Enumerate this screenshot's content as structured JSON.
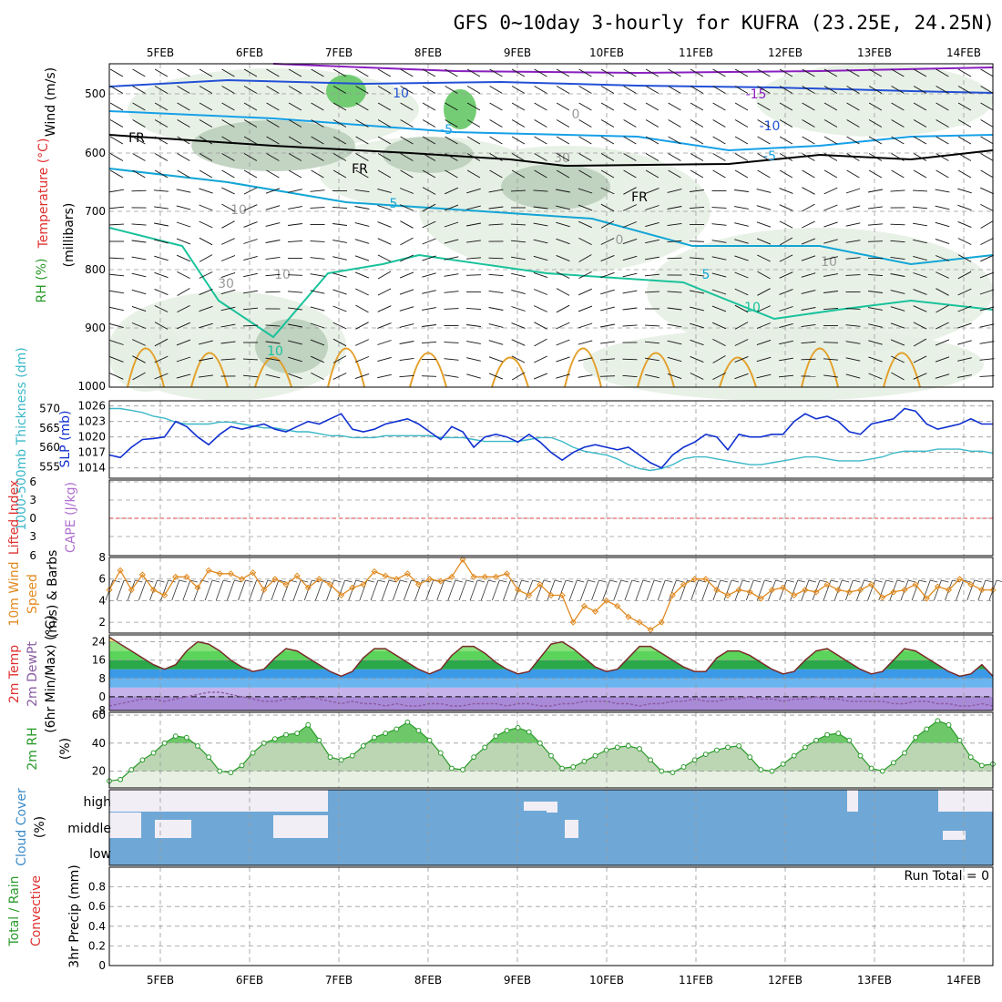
{
  "title": "GFS 0~10day 3-hourly for KUFRA (23.25E, 24.25N)",
  "dates": [
    "5FEB",
    "6FEB",
    "7FEB",
    "8FEB",
    "9FEB",
    "10FEB",
    "11FEB",
    "12FEB",
    "13FEB",
    "14FEB"
  ],
  "colors": {
    "temp_c10": "#19c29b",
    "temp_c5": "#12a5d6",
    "temp_cm5": "#16a0e8",
    "temp_cm10": "#2350d6",
    "temp_cm15": "#8a1fc0",
    "temp_warm": "#e3a029",
    "freezing": "#000000",
    "rh_light": "#e4efe2",
    "rh_mid": "#b9ccb8",
    "rh_dark": "#8faa8e",
    "rh_green": "#5cc45c",
    "slp_line": "#1030d0",
    "thickness_line": "#3cb8c8",
    "wind10m": "#e08a20",
    "dewpt": "#8a5ca0",
    "rh2m": "#2a9a2a",
    "cloud": "#6fa8d6"
  },
  "panels": {
    "upper": {
      "ylabel_wind": "Wind (m/s)",
      "ylabel_temp": "Temperature (°C)",
      "ylabel_rh": "RH (%)",
      "ylabel_units": "(millibars)",
      "yticks": [
        "500",
        "600",
        "700",
        "800",
        "900",
        "1000"
      ],
      "contour_labels": [
        "10",
        "-15",
        "-10",
        "-5",
        "-5",
        "5",
        "5",
        "10",
        "10",
        "FR",
        "FR",
        "FR",
        "10",
        "0",
        "30",
        "30",
        "10",
        "10",
        "0"
      ]
    },
    "slp": {
      "ylabel_thick": "1000-500mb Thickness (dm)",
      "ylabel_slp": "SLP (mb)",
      "left_ticks": [
        "570",
        "565",
        "560",
        "555"
      ],
      "right_ticks": [
        "1026",
        "1023",
        "1020",
        "1017",
        "1014"
      ]
    },
    "cape": {
      "ylabel_li": "Lifted Index",
      "ylabel_cape": "CAPE (J/kg)",
      "ticks": [
        "6",
        "3",
        "0",
        "3",
        "6"
      ]
    },
    "wind10": {
      "ylabel_a": "10m Wind",
      "ylabel_b": "Speed",
      "ylabel_c": "(m/s) & Barbs",
      "ticks": [
        "8",
        "6",
        "4",
        "2"
      ]
    },
    "temp2m": {
      "ylabel_a": "2m Temp",
      "ylabel_b": "2m DewPt",
      "ylabel_c": "(6hr Min/Max) (°C)",
      "ticks": [
        "24",
        "16",
        "8",
        "0",
        "-8"
      ]
    },
    "rh2m": {
      "ylabel": "2m RH",
      "units": "(%)",
      "ticks": [
        "60",
        "40",
        "20"
      ]
    },
    "cloud": {
      "ylabel": "Cloud Cover",
      "units": "(%)",
      "levels": [
        "high",
        "middle",
        "low"
      ]
    },
    "precip": {
      "ylabel_a": "Total / Rain",
      "ylabel_b": "Convective",
      "ylabel_c": "3hr Precip (mm)",
      "ticks": [
        "0.8",
        "0.6",
        "0.4",
        "0.2",
        "0"
      ],
      "run_total": "Run Total = 0"
    }
  },
  "chart_data": [
    {
      "type": "line",
      "name": "sea level pressure",
      "xlabel": "",
      "ylabel": "SLP (mb)",
      "ylim": [
        1012,
        1027
      ],
      "x_unit": "hours from 4 Feb 12Z, 3-hourly",
      "values": [
        1016.5,
        1016,
        1018,
        1019.5,
        1019.7,
        1020,
        1023,
        1022,
        1020,
        1018.5,
        1020.5,
        1022,
        1021.5,
        1022,
        1022.5,
        1021.5,
        1021,
        1022,
        1023,
        1022.5,
        1023.5,
        1024.5,
        1021.5,
        1021,
        1021.5,
        1022.5,
        1023,
        1023.5,
        1022.5,
        1021,
        1019.5,
        1022,
        1021,
        1018,
        1020,
        1020.5,
        1020,
        1019,
        1020.5,
        1019,
        1017,
        1015.5,
        1017,
        1018,
        1018.5,
        1018,
        1017.5,
        1018,
        1016.5,
        1015,
        1014,
        1016.5,
        1018,
        1019,
        1020.5,
        1020,
        1017.5,
        1020.5,
        1020,
        1020,
        1020.5,
        1020.5,
        1023,
        1024.5,
        1023.5,
        1024,
        1023,
        1021,
        1020.5,
        1022.5,
        1023,
        1023.5,
        1025.5,
        1025,
        1022.5,
        1021.5,
        1022,
        1022.5,
        1023.5,
        1022.5,
        1022.5,
        1024
      ]
    },
    {
      "type": "line",
      "name": "1000-500mb thickness",
      "xlabel": "",
      "ylabel": "Thickness (dm)",
      "ylim": [
        552,
        572
      ],
      "values": [
        570,
        570,
        569.5,
        569,
        568,
        567.5,
        566.5,
        566,
        566,
        566,
        566.5,
        566.5,
        566,
        565.5,
        565,
        565,
        564.5,
        564,
        564,
        563.5,
        563,
        563,
        562.5,
        562.5,
        562.5,
        563,
        563,
        563,
        563,
        563,
        562.5,
        562.5,
        562.5,
        562,
        561.5,
        561.5,
        561.5,
        561.5,
        562,
        562.5,
        562.5,
        561.5,
        560,
        559,
        558.5,
        558,
        557,
        555.5,
        554.5,
        554,
        554.5,
        555.5,
        557,
        557.5,
        557.5,
        557,
        556.5,
        556,
        555.5,
        555.5,
        556,
        556.5,
        557,
        557.5,
        557.5,
        557,
        556.5,
        556.5,
        556.5,
        557,
        557.5,
        558.5,
        559,
        559,
        559,
        559.5,
        559.5,
        559.5,
        559,
        559,
        558.5,
        558.5
      ]
    },
    {
      "type": "line",
      "name": "10m wind speed",
      "xlabel": "",
      "ylabel": "Speed (m/s)",
      "ylim": [
        1,
        8
      ],
      "values": [
        5,
        6.8,
        5,
        6.4,
        5,
        4.5,
        6.2,
        6.2,
        5.2,
        6.8,
        6.5,
        6.5,
        6,
        6.6,
        5,
        6,
        5.5,
        6.3,
        5.2,
        6,
        5.5,
        4.5,
        5.2,
        5.5,
        6.7,
        6.3,
        6,
        6.5,
        5.5,
        6,
        5.8,
        6.2,
        7.8,
        6.2,
        6.2,
        6.2,
        6.5,
        5,
        4.5,
        5.5,
        4.5,
        4.5,
        2,
        3.5,
        3,
        4,
        3.5,
        2.5,
        2,
        1.3,
        2,
        4.5,
        5.5,
        6,
        6,
        5,
        4.5,
        5,
        4.8,
        4.2,
        5,
        5.2,
        4.5,
        5,
        4.8,
        5.5,
        5,
        4.8,
        5,
        5.5,
        4.3,
        4.8,
        5,
        5.5,
        4.2,
        5.3,
        5,
        6,
        5.5,
        5,
        5,
        4.8,
        4.5,
        5,
        4.8,
        4.2,
        3.8
      ]
    },
    {
      "type": "area",
      "name": "2m temperature",
      "xlabel": "",
      "ylabel": "Temperature (°C)",
      "ylim": [
        -6,
        27
      ],
      "values": [
        26,
        23,
        20,
        17,
        14,
        12,
        14,
        20,
        24,
        23,
        20,
        16,
        13,
        11,
        12,
        17,
        21,
        20,
        17,
        14,
        11,
        9,
        11,
        17,
        21,
        21,
        18,
        15,
        12,
        10,
        12,
        18,
        22,
        22,
        19,
        15,
        12,
        10,
        11,
        17,
        23,
        24,
        21,
        17,
        13,
        11,
        12,
        17,
        22,
        22,
        19,
        16,
        13,
        11,
        11,
        17,
        20,
        20,
        18,
        15,
        12,
        10,
        11,
        16,
        20,
        21,
        18,
        15,
        12,
        10,
        11,
        16,
        21,
        20,
        17,
        14,
        11,
        9,
        10,
        14,
        9
      ]
    },
    {
      "type": "line",
      "name": "2m dewpoint",
      "xlabel": "",
      "ylabel": "Dew point (°C)",
      "ylim": [
        -6,
        27
      ],
      "values": [
        -4,
        -3,
        -2,
        -1,
        -1,
        -2,
        -1,
        0,
        1,
        2,
        2,
        1,
        0,
        -1,
        -2,
        -2,
        -1,
        -1,
        0,
        -1,
        -2,
        -3,
        -2,
        -3,
        -3,
        -4,
        -3,
        -4,
        -4,
        -3,
        -3,
        -4,
        -4,
        -3,
        -3,
        -3,
        -4,
        -3,
        -3,
        -4,
        -4,
        -3,
        -3,
        -2,
        -2,
        -2,
        -3,
        -3,
        -4,
        -3,
        -3,
        -2,
        -2,
        -1,
        -2,
        -2,
        -1,
        -1,
        0,
        -1,
        -1,
        -2,
        -1,
        -1,
        0,
        -1,
        -1,
        -2,
        -2,
        -2,
        -2,
        -3,
        -3,
        -2,
        -2,
        -3,
        -3,
        -4,
        -4,
        -3,
        -4
      ]
    },
    {
      "type": "area",
      "name": "2m relative humidity",
      "xlabel": "",
      "ylabel": "RH (%)",
      "ylim": [
        8,
        62
      ],
      "values": [
        13,
        14,
        21,
        28,
        33,
        40,
        45,
        44,
        38,
        30,
        20,
        19,
        24,
        33,
        40,
        43,
        46,
        47,
        53,
        42,
        30,
        28,
        31,
        38,
        44,
        47,
        50,
        55,
        49,
        42,
        33,
        22,
        21,
        30,
        37,
        45,
        49,
        51,
        48,
        40,
        31,
        22,
        23,
        27,
        31,
        35,
        37,
        38,
        36,
        28,
        20,
        19,
        23,
        28,
        32,
        35,
        37,
        38,
        30,
        21,
        20,
        25,
        31,
        37,
        42,
        46,
        47,
        42,
        31,
        22,
        20,
        26,
        33,
        44,
        50,
        56,
        53,
        42,
        30,
        24,
        25,
        30,
        34,
        36,
        36,
        35
      ]
    },
    {
      "type": "table",
      "name": "cloud cover",
      "layers": [
        "high",
        "middle",
        "low"
      ],
      "note": "mostly solid cover in all layers; breaks (white) mainly 5FEB-7FEB and isolated periods later"
    },
    {
      "type": "bar",
      "name": "3hr precipitation",
      "xlabel": "",
      "ylabel": "3hr Precip (mm)",
      "ylim": [
        0,
        1
      ],
      "values": []
    }
  ]
}
